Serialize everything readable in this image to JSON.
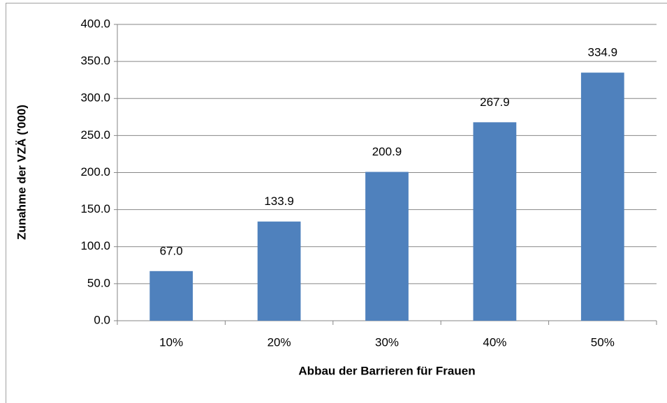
{
  "chart_data": {
    "type": "bar",
    "y_label": "Zunahme der VZÄ ('000)",
    "x_label": "Abbau der Barrieren für Frauen",
    "categories": [
      "10%",
      "20%",
      "30%",
      "40%",
      "50%"
    ],
    "values": [
      67.0,
      133.9,
      200.9,
      267.9,
      334.9
    ],
    "value_labels": [
      "67.0",
      "133.9",
      "200.9",
      "267.9",
      "334.9"
    ],
    "color": "#4f81bd",
    "ylim": [
      0,
      400
    ],
    "yticks": [
      {
        "value": 0,
        "label": "0.0"
      },
      {
        "value": 50,
        "label": "50.0"
      },
      {
        "value": 100,
        "label": "100.0"
      },
      {
        "value": 150,
        "label": "150.0"
      },
      {
        "value": 200,
        "label": "200.0"
      },
      {
        "value": 250,
        "label": "250.0"
      },
      {
        "value": 300,
        "label": "300.0"
      },
      {
        "value": 350,
        "label": "350.0"
      },
      {
        "value": 400,
        "label": "400.0"
      }
    ],
    "grid": true
  }
}
